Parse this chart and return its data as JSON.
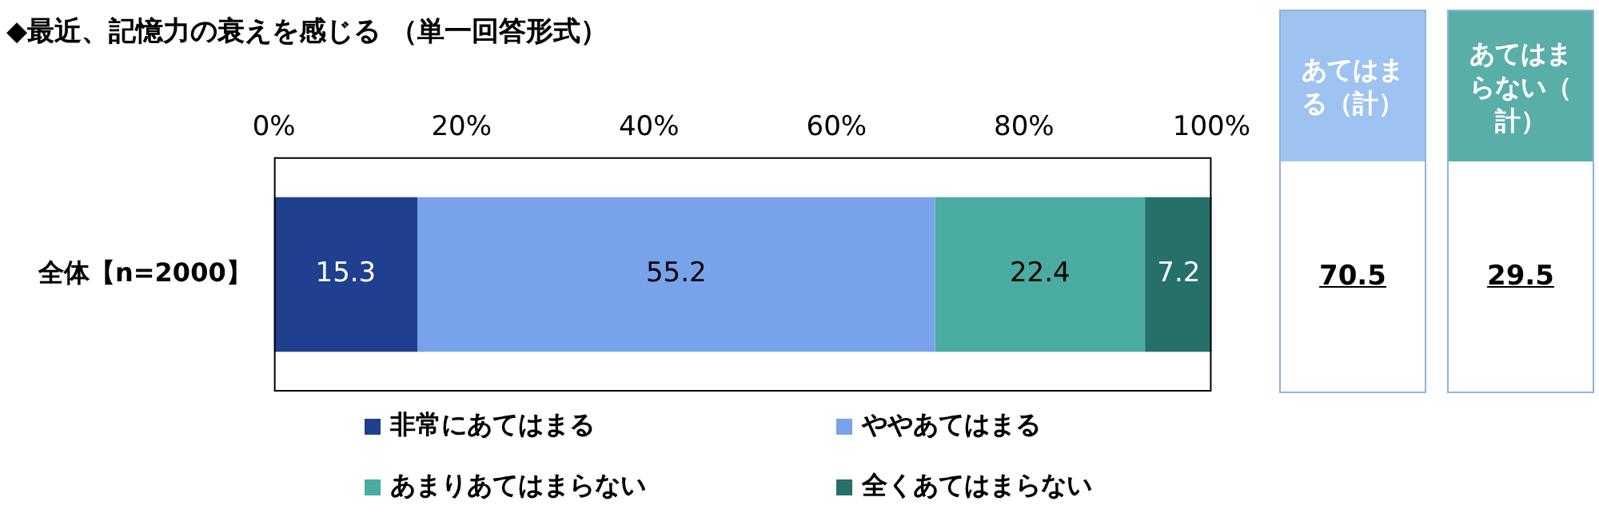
{
  "chart_data": {
    "type": "bar",
    "orientation": "horizontal",
    "stacked": true,
    "title": "◆最近、記憶力の衰えを感じる （単一回答形式）",
    "categories": [
      "全体【n=2000】"
    ],
    "series": [
      {
        "name": "非常にあてはまる",
        "color": "#1f3f8f",
        "values": [
          15.3
        ]
      },
      {
        "name": "ややあてはまる",
        "color": "#78a2ea",
        "values": [
          55.2
        ]
      },
      {
        "name": "あまりあてはまらない",
        "color": "#4aaba0",
        "values": [
          22.4
        ]
      },
      {
        "name": "全くあてはまらない",
        "color": "#26706a",
        "values": [
          7.2
        ]
      }
    ],
    "xlim": [
      0,
      100
    ],
    "xticks": [
      {
        "value": 0,
        "label": "0%"
      },
      {
        "value": 20,
        "label": "20%"
      },
      {
        "value": 40,
        "label": "40%"
      },
      {
        "value": 60,
        "label": "60%"
      },
      {
        "value": 80,
        "label": "80%"
      },
      {
        "value": 100,
        "label": "100%"
      }
    ],
    "grid": false,
    "legend": "bottom",
    "data_labels": true,
    "annotations": [
      "あてはまる（計）",
      "70.5",
      "あてはまらない（計）",
      "29.5"
    ]
  }
}
